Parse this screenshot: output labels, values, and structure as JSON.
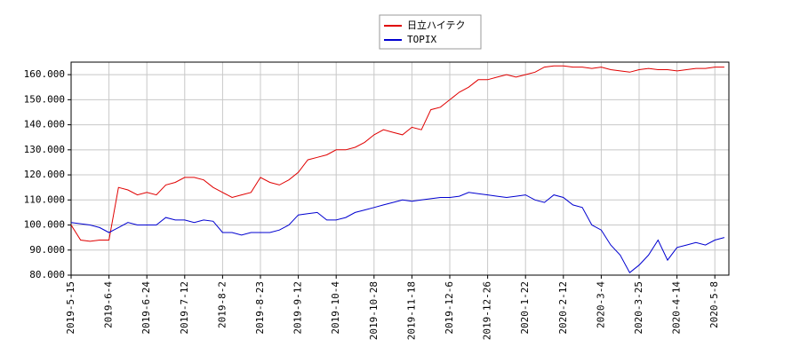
{
  "chart_data": {
    "type": "line",
    "categories": [
      "2019-5-15",
      null,
      null,
      null,
      "2019-6-4",
      null,
      null,
      null,
      "2019-6-24",
      null,
      null,
      null,
      "2019-7-12",
      null,
      null,
      null,
      "2019-8-2",
      null,
      null,
      null,
      "2019-8-23",
      null,
      null,
      null,
      "2019-9-12",
      null,
      null,
      null,
      "2019-10-4",
      null,
      null,
      null,
      "2019-10-28",
      null,
      null,
      null,
      "2019-11-18",
      null,
      null,
      null,
      "2019-12-6",
      null,
      null,
      null,
      "2019-12-26",
      null,
      null,
      null,
      "2020-1-22",
      null,
      null,
      null,
      "2020-2-12",
      null,
      null,
      null,
      "2020-3-4",
      null,
      null,
      null,
      "2020-3-25",
      null,
      null,
      null,
      "2020-4-14",
      null,
      null,
      null,
      "2020-5-8",
      null
    ],
    "series": [
      {
        "name": "日立ハイテク",
        "color": "#e00000",
        "values": [
          100,
          94,
          93.5,
          94,
          94,
          115,
          114,
          112,
          113,
          112,
          116,
          117,
          119,
          119,
          118,
          115,
          113,
          111,
          112,
          113,
          119,
          117,
          116,
          118,
          121,
          126,
          127,
          128,
          130,
          130,
          131,
          133,
          136,
          138,
          137,
          136,
          139,
          138,
          146,
          147,
          150,
          153,
          155,
          158,
          158,
          159,
          160,
          159,
          160,
          161,
          163,
          163.5,
          163.5,
          163,
          163,
          162.5,
          163,
          162,
          161.5,
          161,
          162,
          162.5,
          162,
          162,
          161.5,
          162,
          162.5,
          162.5,
          163,
          163
        ]
      },
      {
        "name": "TOPIX",
        "color": "#0000d0",
        "values": [
          101,
          100.5,
          100,
          99,
          97,
          99,
          101,
          100,
          100,
          100,
          103,
          102,
          102,
          101,
          102,
          101.5,
          97,
          97,
          96,
          97,
          97,
          97,
          98,
          100,
          104,
          104.5,
          105,
          102,
          102,
          103,
          105,
          106,
          107,
          108,
          109,
          110,
          109.5,
          110,
          110.5,
          111,
          111,
          111.5,
          113,
          112.5,
          112,
          111.5,
          111,
          111.5,
          112,
          110,
          109,
          112,
          111,
          108,
          107,
          100,
          98,
          92,
          88,
          81,
          84,
          88,
          94,
          86,
          91,
          92,
          93,
          92,
          94,
          95
        ]
      }
    ],
    "ylim": [
      80,
      165
    ],
    "yticks": [
      {
        "value": 80,
        "label": "80.000"
      },
      {
        "value": 90,
        "label": "90.000"
      },
      {
        "value": 100,
        "label": "100.000"
      },
      {
        "value": 110,
        "label": "110.000"
      },
      {
        "value": 120,
        "label": "120.000"
      },
      {
        "value": 130,
        "label": "130.000"
      },
      {
        "value": 140,
        "label": "140.000"
      },
      {
        "value": 150,
        "label": "150.000"
      },
      {
        "value": 160,
        "label": "160.000"
      }
    ],
    "grid": true
  }
}
